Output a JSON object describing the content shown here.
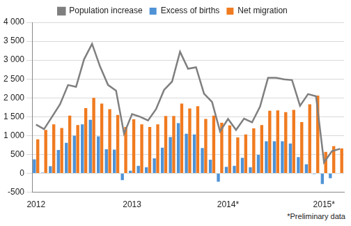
{
  "chart_data": {
    "type": "bar",
    "annotation": "*Preliminary data",
    "categories": [
      "2012",
      null,
      null,
      null,
      null,
      null,
      null,
      null,
      null,
      null,
      null,
      null,
      "2013",
      null,
      null,
      null,
      null,
      null,
      null,
      null,
      null,
      null,
      null,
      null,
      "2014*",
      null,
      null,
      null,
      null,
      null,
      null,
      null,
      null,
      null,
      null,
      null,
      "2015*",
      null,
      null
    ],
    "series": [
      {
        "name": "Excess of births",
        "type": "bar",
        "color": "#4f93d6",
        "values": [
          370,
          20,
          190,
          620,
          810,
          1000,
          1300,
          1420,
          980,
          640,
          630,
          -180,
          70,
          200,
          160,
          400,
          680,
          960,
          1330,
          1050,
          1030,
          670,
          360,
          -220,
          170,
          200,
          410,
          160,
          490,
          850,
          850,
          850,
          790,
          430,
          240,
          -20,
          -280,
          -130,
          -10
        ]
      },
      {
        "name": "Net migration",
        "type": "bar",
        "color": "#f07b20",
        "values": [
          900,
          1150,
          1300,
          1200,
          1530,
          1280,
          1730,
          2000,
          1850,
          1700,
          1550,
          1230,
          1430,
          1300,
          1230,
          1300,
          1520,
          1520,
          1850,
          1720,
          1780,
          1440,
          1530,
          1340,
          1270,
          950,
          1030,
          1190,
          1280,
          1660,
          1670,
          1620,
          1680,
          1360,
          1830,
          2060,
          570,
          720,
          660
        ]
      },
      {
        "name": "Population increase",
        "type": "line",
        "color": "#7f7f7f",
        "values": [
          1290,
          1170,
          1500,
          1830,
          2340,
          2290,
          3020,
          3430,
          2830,
          2340,
          2190,
          1050,
          1570,
          1500,
          1400,
          1700,
          2210,
          2430,
          3220,
          2770,
          2810,
          2110,
          1890,
          1110,
          1440,
          1150,
          1450,
          1350,
          1770,
          2530,
          2530,
          2490,
          2470,
          1790,
          2100,
          2040,
          290,
          590,
          650
        ]
      }
    ],
    "ylim": [
      -500,
      4000
    ],
    "yticks": [
      {
        "value": -500,
        "label": "-500"
      },
      0,
      500,
      {
        "value": 1000,
        "label": "1 000"
      },
      {
        "value": 1500,
        "label": "1 500"
      },
      {
        "value": 2000,
        "label": "2 000"
      },
      {
        "value": 2500,
        "label": "2 500"
      },
      {
        "value": 3000,
        "label": "3 000"
      },
      {
        "value": 3500,
        "label": "3 500"
      },
      {
        "value": 4000,
        "label": "4 000"
      }
    ],
    "grid": true,
    "legend": "top"
  }
}
